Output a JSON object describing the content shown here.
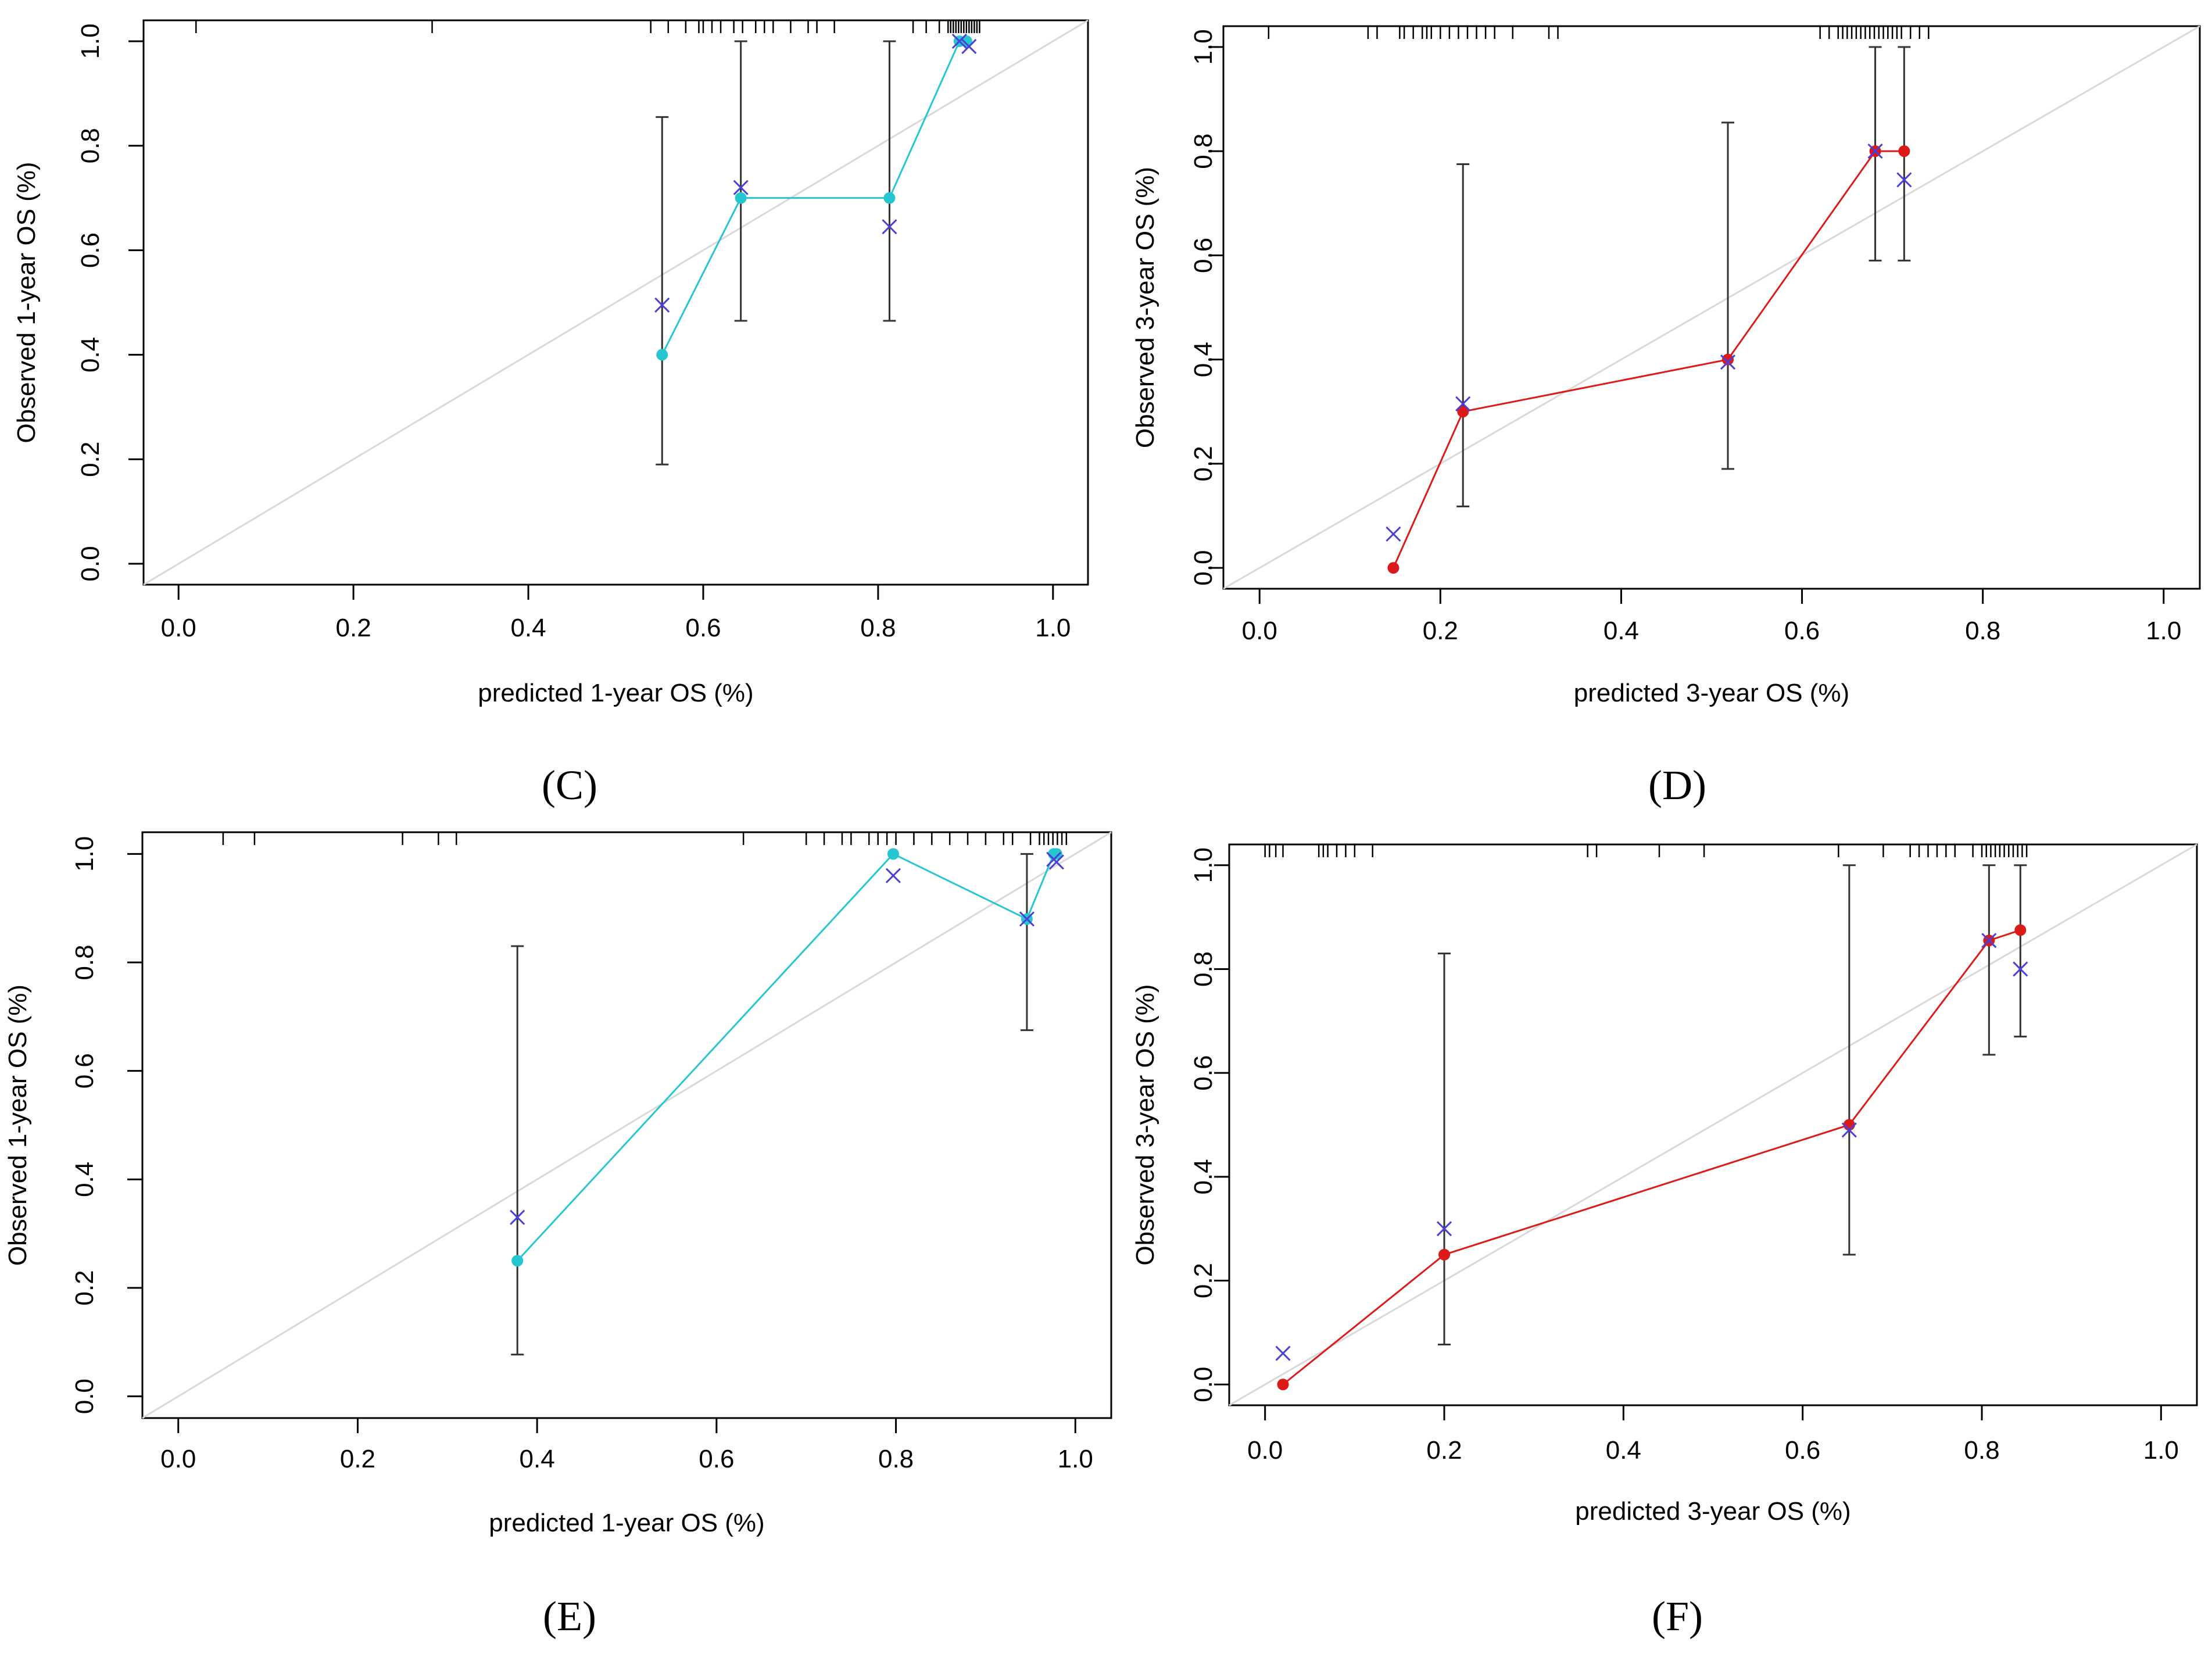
{
  "figure": {
    "panel_labels": [
      "(C)",
      "(D)",
      "(E)",
      "(F)"
    ]
  },
  "colors": {
    "axis": "#000000",
    "reference_line": "#d9d9d9",
    "cyan_series": "#26c6d0",
    "red_series": "#dd1a1a",
    "cross_marker": "#4a3fd6",
    "error_bar": "#333333"
  },
  "chart_data": [
    {
      "panel": "C",
      "type": "scatter",
      "xlabel": "predicted 1-year OS (%)",
      "ylabel": "Observed 1-year OS (%)",
      "xlim": [
        -0.04,
        1.04
      ],
      "ylim": [
        -0.04,
        1.04
      ],
      "xticks": [
        "0.0",
        "0.2",
        "0.4",
        "0.6",
        "0.8",
        "1.0"
      ],
      "yticks": [
        "0.0",
        "0.2",
        "0.4",
        "0.6",
        "0.8",
        "1.0"
      ],
      "series_color": "cyan_series",
      "observed": {
        "x": [
          0.553,
          0.643,
          0.813,
          0.893,
          0.901
        ],
        "y": [
          0.4,
          0.7,
          0.7,
          1.0,
          1.0
        ]
      },
      "bias_corrected": {
        "x": [
          0.553,
          0.643,
          0.813,
          0.893,
          0.904
        ],
        "y": [
          0.495,
          0.72,
          0.645,
          1.0,
          0.99
        ]
      },
      "error_bars": [
        {
          "x": 0.553,
          "lo": 0.19,
          "hi": 0.855
        },
        {
          "x": 0.643,
          "lo": 0.465,
          "hi": 1.0
        },
        {
          "x": 0.813,
          "lo": 0.465,
          "hi": 1.0
        }
      ],
      "rug": [
        0.02,
        0.29,
        0.54,
        0.56,
        0.58,
        0.595,
        0.6,
        0.61,
        0.62,
        0.635,
        0.645,
        0.66,
        0.67,
        0.68,
        0.7,
        0.72,
        0.73,
        0.75,
        0.84,
        0.855,
        0.87,
        0.88,
        0.883,
        0.886,
        0.889,
        0.892,
        0.895,
        0.898,
        0.901,
        0.904,
        0.907,
        0.91,
        0.913,
        0.916
      ]
    },
    {
      "panel": "D",
      "type": "scatter",
      "xlabel": "predicted 3-year OS (%)",
      "ylabel": "Observed 3-year OS (%)",
      "xlim": [
        -0.04,
        1.04
      ],
      "ylim": [
        -0.04,
        1.04
      ],
      "xticks": [
        "0.0",
        "0.2",
        "0.4",
        "0.6",
        "0.8",
        "1.0"
      ],
      "yticks": [
        "0.0",
        "0.2",
        "0.4",
        "0.6",
        "0.8",
        "1.0"
      ],
      "series_color": "red_series",
      "observed": {
        "x": [
          0.148,
          0.225,
          0.518,
          0.681,
          0.713
        ],
        "y": [
          0.0,
          0.3,
          0.4,
          0.8,
          0.8
        ]
      },
      "bias_corrected": {
        "x": [
          0.148,
          0.225,
          0.518,
          0.681,
          0.713
        ],
        "y": [
          0.065,
          0.315,
          0.395,
          0.8,
          0.745
        ]
      },
      "error_bars": [
        {
          "x": 0.225,
          "lo": 0.118,
          "hi": 0.775
        },
        {
          "x": 0.518,
          "lo": 0.19,
          "hi": 0.855
        },
        {
          "x": 0.681,
          "lo": 0.59,
          "hi": 1.0
        },
        {
          "x": 0.713,
          "lo": 0.59,
          "hi": 1.0
        }
      ],
      "rug": [
        0.01,
        0.12,
        0.13,
        0.155,
        0.16,
        0.17,
        0.18,
        0.185,
        0.19,
        0.2,
        0.21,
        0.22,
        0.23,
        0.24,
        0.25,
        0.26,
        0.28,
        0.32,
        0.33,
        0.62,
        0.63,
        0.64,
        0.645,
        0.65,
        0.655,
        0.66,
        0.665,
        0.67,
        0.675,
        0.68,
        0.685,
        0.69,
        0.695,
        0.7,
        0.705,
        0.71,
        0.72,
        0.73,
        0.74
      ]
    },
    {
      "panel": "E",
      "type": "scatter",
      "xlabel": "predicted 1-year OS (%)",
      "ylabel": "Observed 1-year OS (%)",
      "xlim": [
        -0.04,
        1.04
      ],
      "ylim": [
        -0.04,
        1.04
      ],
      "xticks": [
        "0.0",
        "0.2",
        "0.4",
        "0.6",
        "0.8",
        "1.0"
      ],
      "yticks": [
        "0.0",
        "0.2",
        "0.4",
        "0.6",
        "0.8",
        "1.0"
      ],
      "series_color": "cyan_series",
      "observed": {
        "x": [
          0.378,
          0.797,
          0.946,
          0.976,
          0.979
        ],
        "y": [
          0.25,
          1.0,
          0.88,
          1.0,
          1.0
        ]
      },
      "bias_corrected": {
        "x": [
          0.378,
          0.797,
          0.946,
          0.976,
          0.979
        ],
        "y": [
          0.33,
          0.96,
          0.88,
          0.99,
          0.985
        ]
      },
      "error_bars": [
        {
          "x": 0.378,
          "lo": 0.077,
          "hi": 0.83
        },
        {
          "x": 0.946,
          "lo": 0.675,
          "hi": 1.0
        }
      ],
      "rug": [
        0.05,
        0.085,
        0.25,
        0.29,
        0.31,
        0.63,
        0.7,
        0.72,
        0.74,
        0.75,
        0.77,
        0.78,
        0.79,
        0.8,
        0.82,
        0.84,
        0.86,
        0.88,
        0.9,
        0.92,
        0.93,
        0.95,
        0.96,
        0.965,
        0.97,
        0.975,
        0.98,
        0.985,
        0.99
      ]
    },
    {
      "panel": "F",
      "type": "scatter",
      "xlabel": "predicted 3-year OS (%)",
      "ylabel": "Observed 3-year OS (%)",
      "xlim": [
        -0.04,
        1.04
      ],
      "ylim": [
        -0.04,
        1.04
      ],
      "xticks": [
        "0.0",
        "0.2",
        "0.4",
        "0.6",
        "0.8",
        "1.0"
      ],
      "yticks": [
        "0.0",
        "0.2",
        "0.4",
        "0.6",
        "0.8",
        "1.0"
      ],
      "series_color": "red_series",
      "observed": {
        "x": [
          0.02,
          0.2,
          0.652,
          0.808,
          0.843
        ],
        "y": [
          0.0,
          0.25,
          0.5,
          0.855,
          0.875
        ]
      },
      "bias_corrected": {
        "x": [
          0.02,
          0.2,
          0.652,
          0.808,
          0.843
        ],
        "y": [
          0.06,
          0.3,
          0.49,
          0.855,
          0.8
        ]
      },
      "error_bars": [
        {
          "x": 0.2,
          "lo": 0.077,
          "hi": 0.83
        },
        {
          "x": 0.652,
          "lo": 0.25,
          "hi": 1.0
        },
        {
          "x": 0.808,
          "lo": 0.635,
          "hi": 1.0
        },
        {
          "x": 0.843,
          "lo": 0.67,
          "hi": 1.0
        }
      ],
      "rug": [
        0.0,
        0.005,
        0.012,
        0.02,
        0.06,
        0.065,
        0.07,
        0.08,
        0.09,
        0.1,
        0.12,
        0.36,
        0.37,
        0.44,
        0.49,
        0.64,
        0.69,
        0.72,
        0.73,
        0.74,
        0.75,
        0.76,
        0.77,
        0.79,
        0.8,
        0.805,
        0.81,
        0.815,
        0.82,
        0.825,
        0.83,
        0.835,
        0.84,
        0.845,
        0.85
      ]
    }
  ]
}
